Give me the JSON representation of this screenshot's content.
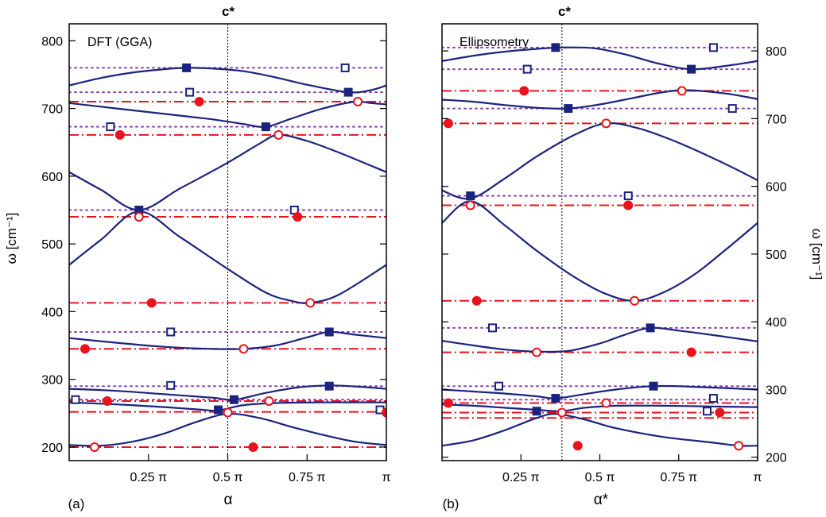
{
  "figure": {
    "colors": {
      "axis": "#000000",
      "curve": "#1a237e",
      "square": "#1a237e",
      "circle": "#e8131d",
      "dotted": "#8b3fb4"
    }
  },
  "chart_data": [
    {
      "type": "line",
      "panel_label": "(a)",
      "inset_label": "DFT (GGA)",
      "title": "c*",
      "xlabel": "α",
      "ylabel": "ω [cm⁻¹]",
      "ylabel_side": "left",
      "xlim": [
        0,
        1
      ],
      "ylim": [
        180,
        825
      ],
      "x_unit": "π",
      "x_ticks": [
        0.25,
        0.5,
        0.75,
        1.0
      ],
      "x_tick_labels": [
        "0.25 π",
        "0.5 π",
        "0.75 π",
        "π"
      ],
      "y_ticks": [
        200,
        300,
        400,
        500,
        600,
        700,
        800
      ],
      "y_tick_labels": [
        "200",
        "300",
        "400",
        "500",
        "600",
        "700",
        "800"
      ],
      "c_star_x": 0.5,
      "dotted_levels": [
        760,
        724,
        673,
        550,
        370,
        290,
        270
      ],
      "dashdot_levels": [
        710,
        661,
        540,
        413,
        345,
        268,
        252,
        200
      ],
      "filled_squares": [
        [
          0.37,
          760
        ],
        [
          0.88,
          724
        ],
        [
          0.62,
          673
        ],
        [
          0.22,
          550
        ],
        [
          0.82,
          370
        ],
        [
          0.82,
          290
        ],
        [
          0.52,
          270
        ],
        [
          0.47,
          255
        ]
      ],
      "open_squares": [
        [
          0.87,
          760
        ],
        [
          0.38,
          724
        ],
        [
          0.13,
          673
        ],
        [
          0.71,
          550
        ],
        [
          0.32,
          370
        ],
        [
          0.32,
          291
        ],
        [
          0.02,
          270
        ],
        [
          0.98,
          255
        ]
      ],
      "filled_circles": [
        [
          0.41,
          710
        ],
        [
          0.16,
          661
        ],
        [
          0.72,
          540
        ],
        [
          0.26,
          413
        ],
        [
          0.05,
          345
        ],
        [
          0.12,
          268
        ],
        [
          1.0,
          251
        ],
        [
          0.58,
          200
        ]
      ],
      "open_circles": [
        [
          0.91,
          710
        ],
        [
          0.66,
          661
        ],
        [
          0.22,
          540
        ],
        [
          0.76,
          413
        ],
        [
          0.55,
          345
        ],
        [
          0.63,
          268
        ],
        [
          0.5,
          251
        ],
        [
          0.08,
          200
        ]
      ],
      "series": [
        {
          "x": [
            0,
            0.1,
            0.2,
            0.3,
            0.37,
            0.45,
            0.55,
            0.65,
            0.75,
            0.88,
            0.95,
            1.0
          ],
          "y": [
            734,
            745,
            753,
            758,
            760,
            759,
            755,
            746,
            735,
            724,
            727,
            734
          ]
        },
        {
          "x": [
            0,
            0.15,
            0.3,
            0.45,
            0.55,
            0.62,
            0.7,
            0.8,
            0.9,
            0.95,
            1.0
          ],
          "y": [
            708,
            700,
            692,
            684,
            677,
            673,
            685,
            700,
            710,
            708,
            706
          ]
        },
        {
          "x": [
            0,
            0.1,
            0.22,
            0.35,
            0.5,
            0.6,
            0.66,
            0.75,
            0.85,
            1.0
          ],
          "y": [
            606,
            580,
            550,
            582,
            620,
            648,
            661,
            652,
            635,
            606
          ]
        },
        {
          "x": [
            0,
            0.1,
            0.22,
            0.35,
            0.5,
            0.62,
            0.7,
            0.76,
            0.85,
            1.0
          ],
          "y": [
            469,
            506,
            548,
            510,
            463,
            428,
            416,
            413,
            425,
            469
          ]
        },
        {
          "x": [
            0,
            0.15,
            0.3,
            0.45,
            0.55,
            0.65,
            0.75,
            0.82,
            0.9,
            1.0
          ],
          "y": [
            361,
            354,
            348,
            345,
            345,
            350,
            362,
            370,
            366,
            361
          ]
        },
        {
          "x": [
            0,
            0.15,
            0.3,
            0.45,
            0.52,
            0.62,
            0.72,
            0.82,
            0.92,
            1.0
          ],
          "y": [
            286,
            283,
            278,
            273,
            270,
            280,
            288,
            291,
            289,
            286
          ]
        },
        {
          "x": [
            0,
            0.15,
            0.3,
            0.42,
            0.47,
            0.55,
            0.65,
            0.8,
            1.0
          ],
          "y": [
            266,
            263,
            259,
            255,
            254,
            262,
            265,
            266,
            266
          ]
        },
        {
          "x": [
            0,
            0.1,
            0.2,
            0.3,
            0.4,
            0.5,
            0.6,
            0.7,
            0.8,
            0.9,
            1.0
          ],
          "y": [
            203,
            202,
            208,
            220,
            237,
            249,
            243,
            230,
            218,
            208,
            203
          ]
        }
      ]
    },
    {
      "type": "line",
      "panel_label": "(b)",
      "inset_label": "Ellipsometry",
      "title": "c*",
      "xlabel": "α*",
      "ylabel": "ω [cm⁻¹]",
      "ylabel_side": "right",
      "xlim": [
        0,
        1
      ],
      "ylim": [
        195,
        840
      ],
      "x_unit": "π",
      "x_ticks": [
        0.25,
        0.5,
        0.75,
        1.0
      ],
      "x_tick_labels": [
        "0.25 π",
        "0.5 π",
        "0.75 π",
        "π"
      ],
      "y_ticks": [
        200,
        300,
        400,
        500,
        600,
        700,
        800
      ],
      "y_tick_labels": [
        "200",
        "300",
        "400",
        "500",
        "600",
        "700",
        "800"
      ],
      "c_star_x": 0.38,
      "dotted_levels": [
        805,
        773,
        715,
        586,
        391,
        305,
        285
      ],
      "dashdot_levels": [
        741,
        693,
        572,
        431,
        355,
        280,
        266,
        258
      ],
      "filled_squares": [
        [
          0.36,
          805
        ],
        [
          0.79,
          773
        ],
        [
          0.4,
          715
        ],
        [
          0.09,
          586
        ],
        [
          0.66,
          391
        ],
        [
          0.67,
          305
        ],
        [
          0.36,
          287
        ],
        [
          0.3,
          268
        ]
      ],
      "open_squares": [
        [
          0.86,
          805
        ],
        [
          0.27,
          773
        ],
        [
          0.92,
          715
        ],
        [
          0.59,
          586
        ],
        [
          0.16,
          391
        ],
        [
          0.18,
          305
        ],
        [
          0.86,
          287
        ],
        [
          0.84,
          268
        ]
      ],
      "filled_circles": [
        [
          0.26,
          741
        ],
        [
          0.02,
          693
        ],
        [
          0.59,
          572
        ],
        [
          0.11,
          431
        ],
        [
          0.79,
          355
        ],
        [
          0.02,
          280
        ],
        [
          0.88,
          266
        ],
        [
          0.43,
          217
        ]
      ],
      "open_circles": [
        [
          0.76,
          741
        ],
        [
          0.52,
          693
        ],
        [
          0.09,
          572
        ],
        [
          0.61,
          431
        ],
        [
          0.3,
          355
        ],
        [
          0.52,
          280
        ],
        [
          0.38,
          266
        ],
        [
          0.94,
          217
        ]
      ],
      "series": [
        {
          "x": [
            0,
            0.1,
            0.2,
            0.3,
            0.38,
            0.48,
            0.58,
            0.68,
            0.79,
            0.9,
            1.0
          ],
          "y": [
            785,
            793,
            799,
            803,
            805,
            804,
            795,
            782,
            773,
            778,
            785
          ]
        },
        {
          "x": [
            0,
            0.1,
            0.2,
            0.3,
            0.4,
            0.5,
            0.6,
            0.7,
            0.78,
            0.9,
            1.0
          ],
          "y": [
            728,
            725,
            720,
            716,
            715,
            721,
            730,
            739,
            742,
            737,
            729
          ]
        },
        {
          "x": [
            0,
            0.09,
            0.2,
            0.3,
            0.42,
            0.52,
            0.62,
            0.72,
            0.82,
            0.92,
            1.0
          ],
          "y": [
            594,
            582,
            612,
            644,
            676,
            693,
            686,
            670,
            650,
            628,
            609
          ]
        },
        {
          "x": [
            0,
            0.09,
            0.2,
            0.3,
            0.42,
            0.52,
            0.61,
            0.7,
            0.8,
            0.9,
            1.0
          ],
          "y": [
            546,
            578,
            542,
            505,
            466,
            441,
            431,
            443,
            470,
            507,
            546
          ]
        },
        {
          "x": [
            0,
            0.1,
            0.2,
            0.3,
            0.4,
            0.5,
            0.58,
            0.66,
            0.75,
            0.88,
            1.0
          ],
          "y": [
            372,
            365,
            359,
            356,
            357,
            368,
            381,
            391,
            387,
            379,
            371
          ]
        },
        {
          "x": [
            0,
            0.1,
            0.2,
            0.3,
            0.36,
            0.45,
            0.55,
            0.67,
            0.8,
            1.0
          ],
          "y": [
            300,
            297,
            294,
            290,
            287,
            293,
            300,
            305,
            304,
            300
          ]
        },
        {
          "x": [
            0,
            0.1,
            0.2,
            0.3,
            0.38,
            0.45,
            0.55,
            0.7,
            0.85,
            1.0
          ],
          "y": [
            278,
            276,
            273,
            270,
            268,
            273,
            276,
            276,
            275,
            274
          ]
        },
        {
          "x": [
            0,
            0.1,
            0.2,
            0.3,
            0.36,
            0.45,
            0.55,
            0.7,
            0.85,
            0.94,
            1.0
          ],
          "y": [
            217,
            225,
            240,
            258,
            264,
            256,
            243,
            230,
            222,
            217,
            217
          ]
        }
      ]
    }
  ]
}
